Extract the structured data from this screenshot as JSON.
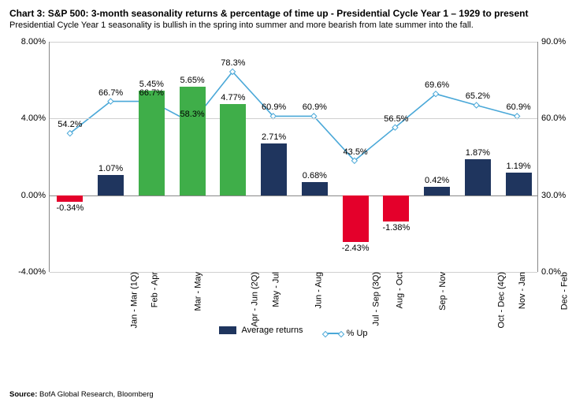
{
  "header": {
    "chart_label": "Chart 3:",
    "title_rest": "S&P 500: 3-month seasonality returns & percentage of time up - Presidential Cycle Year 1 – 1929 to present",
    "subtitle": "Presidential Cycle Year 1 seasonality is bullish in the spring into summer and more bearish from late summer into the fall."
  },
  "source": {
    "label": "Source:",
    "text": "BofA Global Research, Bloomberg"
  },
  "legend": {
    "bars": "Average returns",
    "line": "% Up"
  },
  "chart": {
    "type": "bar+line",
    "background_color": "#ffffff",
    "grid_color": "#d0d0d0",
    "axis_color": "#888888",
    "font_size_ticks": 11,
    "left_axis": {
      "min": -4.0,
      "max": 8.0,
      "ticks": [
        -4.0,
        0.0,
        4.0,
        8.0
      ],
      "fmt_suffix": ".00%"
    },
    "right_axis": {
      "min": 0.0,
      "max": 90.0,
      "ticks": [
        0.0,
        30.0,
        60.0,
        90.0
      ],
      "fmt_suffix": ".0%"
    },
    "categories": [
      "Jan - Mar (1Q)",
      "Feb - Apr",
      "Mar - May",
      "Apr - Jun (2Q)",
      "May - Jul",
      "Jun - Aug",
      "Jul - Sep (3Q)",
      "Aug - Oct",
      "Sep - Nov",
      "Oct - Dec (4Q)",
      "Nov - Jan",
      "Dec - Feb"
    ],
    "bars": {
      "values": [
        -0.34,
        1.07,
        5.45,
        5.65,
        4.77,
        2.71,
        0.68,
        -2.43,
        -1.38,
        0.42,
        1.87,
        1.19
      ],
      "labels": [
        "-0.34%",
        "1.07%",
        "5.45%",
        "5.65%",
        "4.77%",
        "2.71%",
        "0.68%",
        "-2.43%",
        "-1.38%",
        "0.42%",
        "1.87%",
        "1.19%"
      ],
      "color_default": "#1f355e",
      "color_positive_highlight": "#3fae49",
      "color_negative": "#e4002b",
      "highlight_indices": [
        2,
        3,
        4
      ],
      "bar_width_frac": 0.64
    },
    "line": {
      "values": [
        54.2,
        66.7,
        66.7,
        58.3,
        78.3,
        60.9,
        60.9,
        43.5,
        56.5,
        69.6,
        65.2,
        60.9
      ],
      "labels": [
        "54.2%",
        "66.7%",
        "66.7%",
        "58.3%",
        "78.3%",
        "60.9%",
        "60.9%",
        "43.5%",
        "56.5%",
        "69.6%",
        "65.2%",
        "60.9%"
      ],
      "color": "#4aa8d8",
      "stroke_width": 1.6,
      "marker": "diamond",
      "marker_size": 5
    }
  }
}
